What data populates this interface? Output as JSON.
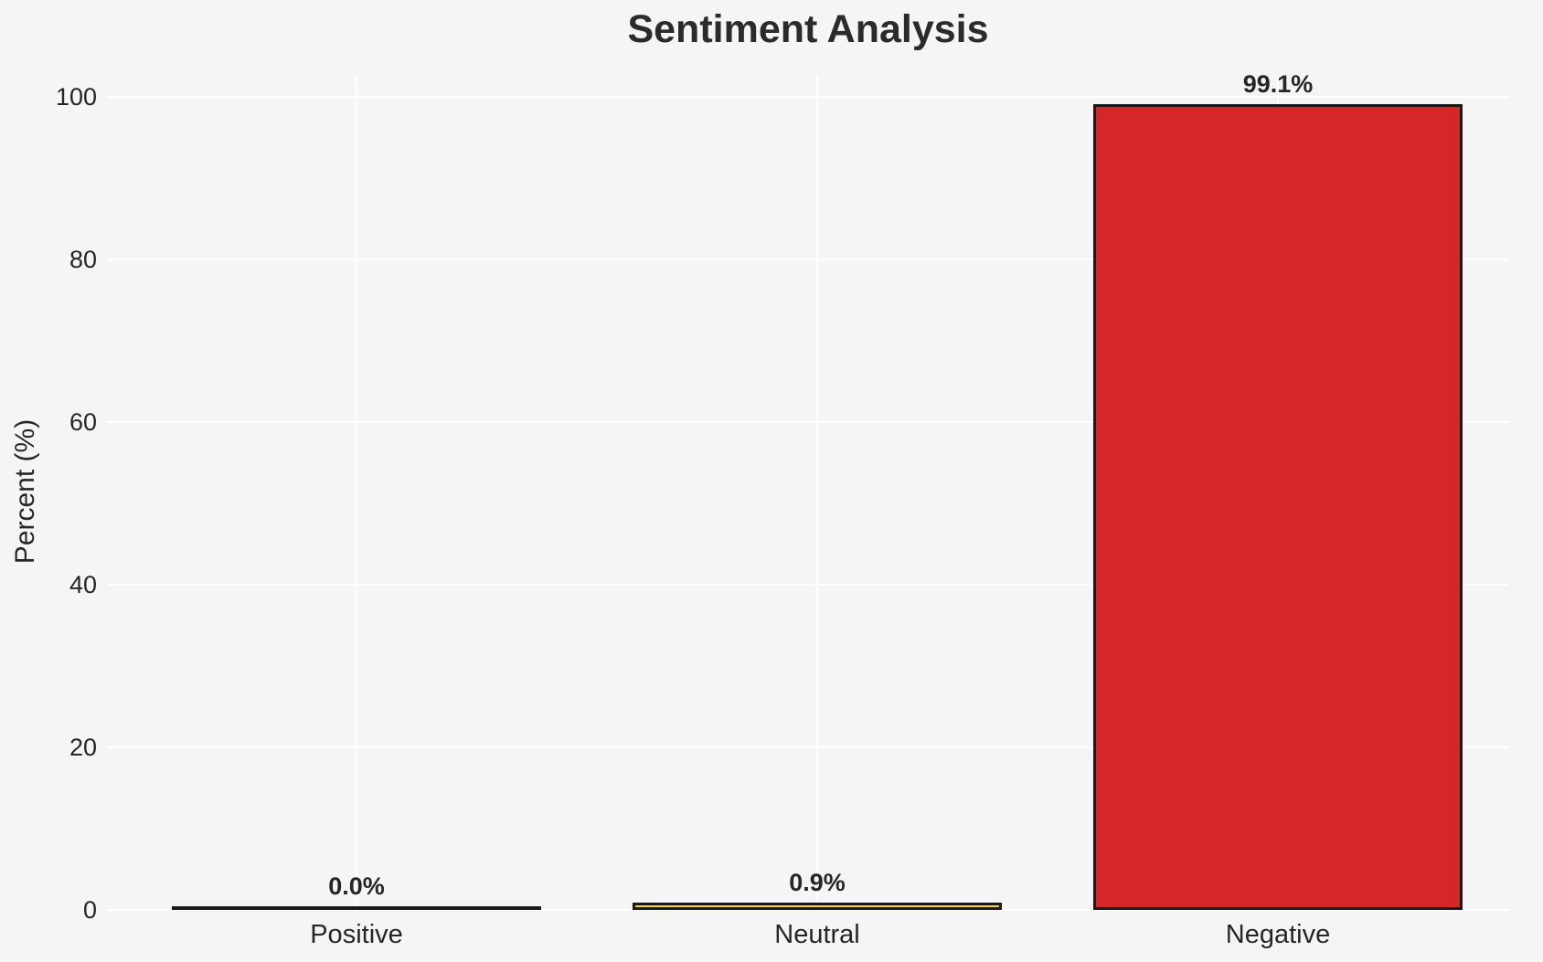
{
  "chart_data": {
    "type": "bar",
    "title": "Sentiment Analysis",
    "ylabel": "Percent (%)",
    "xlabel": "",
    "categories": [
      "Positive",
      "Neutral",
      "Negative"
    ],
    "values": [
      0.0,
      0.9,
      99.1
    ],
    "value_labels": [
      "0.0%",
      "0.9%",
      "99.1%"
    ],
    "yticks": [
      0,
      20,
      40,
      60,
      80,
      100
    ],
    "ylim": [
      0,
      103.5
    ],
    "grid": true,
    "legend": false,
    "colors": {
      "background": "#f5f5f6",
      "gridline": "#ffffff",
      "bar_fills": [
        null,
        "#f5d33c",
        "#d62728"
      ],
      "bar_edge": "#1a1a1a",
      "text": "#262626"
    }
  }
}
